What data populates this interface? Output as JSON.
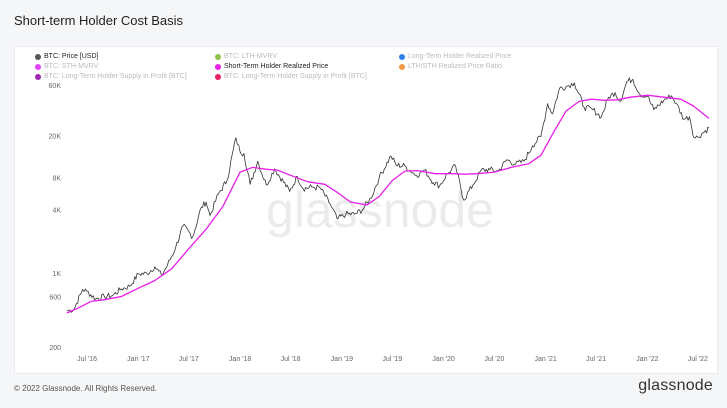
{
  "title": "Short-term Holder Cost Basis",
  "footer": "© 2022 Glassnode. All Rights Reserved.",
  "brand": "glassnode",
  "watermark": "glassnode",
  "legend": [
    {
      "label": "BTC: Price [USD]",
      "color": "#555555",
      "muted": false
    },
    {
      "label": "BTC: LTH-MVRV",
      "color": "#8bc34a",
      "muted": true
    },
    {
      "label": "Long-Term Holder Realized Price",
      "color": "#2f80ed",
      "muted": true
    },
    {
      "label": "BTC: STH-MVRV",
      "color": "#e040fb",
      "muted": true
    },
    {
      "label": "Short-Term Holder Realized Price",
      "color": "#e91ee9",
      "muted": false
    },
    {
      "label": "LTH/STH Realized Price Ratio",
      "color": "#f2994a",
      "muted": true
    },
    {
      "label": "BTC: Long-Term Holder Supply in Profit [BTC]",
      "color": "#9c27b0",
      "muted": true
    },
    {
      "label": "BTC: Long-Term Holder Supply in Profit [BTC]",
      "color": "#e91e63",
      "muted": true
    }
  ],
  "chart_data": {
    "type": "line",
    "title": "Short-term Holder Cost Basis",
    "y_scale": "log",
    "ylim": [
      200,
      60000
    ],
    "y_ticks": [
      {
        "value": 200,
        "label": "200"
      },
      {
        "value": 600,
        "label": "600"
      },
      {
        "value": 1000,
        "label": "1K"
      },
      {
        "value": 4000,
        "label": "4K"
      },
      {
        "value": 8000,
        "label": "8K"
      },
      {
        "value": 20000,
        "label": "20K"
      },
      {
        "value": 60000,
        "label": "60K"
      }
    ],
    "x_range": [
      "2016-04-20",
      "2022-08-10"
    ],
    "x_ticks": [
      {
        "date": "2016-07-01",
        "label": "Jul '16"
      },
      {
        "date": "2017-01-01",
        "label": "Jan '17"
      },
      {
        "date": "2017-07-01",
        "label": "Jul '17"
      },
      {
        "date": "2018-01-01",
        "label": "Jan '18"
      },
      {
        "date": "2018-07-01",
        "label": "Jul '18"
      },
      {
        "date": "2019-01-01",
        "label": "Jan '19"
      },
      {
        "date": "2019-07-01",
        "label": "Jul '19"
      },
      {
        "date": "2020-01-01",
        "label": "Jan '20"
      },
      {
        "date": "2020-07-01",
        "label": "Jul '20"
      },
      {
        "date": "2021-01-01",
        "label": "Jan '21"
      },
      {
        "date": "2021-07-01",
        "label": "Jul '21"
      },
      {
        "date": "2022-01-01",
        "label": "Jan '22"
      },
      {
        "date": "2022-07-01",
        "label": "Jul '22"
      }
    ],
    "series": [
      {
        "name": "BTC: Price [USD]",
        "color": "#333333",
        "points": [
          [
            "2016-04-20",
            440
          ],
          [
            "2016-05-15",
            455
          ],
          [
            "2016-06-15",
            700
          ],
          [
            "2016-07-01",
            670
          ],
          [
            "2016-08-01",
            570
          ],
          [
            "2016-09-01",
            600
          ],
          [
            "2016-10-01",
            615
          ],
          [
            "2016-11-01",
            710
          ],
          [
            "2016-12-01",
            750
          ],
          [
            "2017-01-01",
            980
          ],
          [
            "2017-02-01",
            990
          ],
          [
            "2017-03-01",
            1150
          ],
          [
            "2017-03-25",
            950
          ],
          [
            "2017-04-15",
            1180
          ],
          [
            "2017-05-15",
            1750
          ],
          [
            "2017-06-10",
            2800
          ],
          [
            "2017-07-15",
            2200
          ],
          [
            "2017-08-15",
            4200
          ],
          [
            "2017-09-01",
            4700
          ],
          [
            "2017-09-15",
            3500
          ],
          [
            "2017-10-15",
            5600
          ],
          [
            "2017-11-15",
            7500
          ],
          [
            "2017-12-17",
            19000
          ],
          [
            "2018-01-01",
            14000
          ],
          [
            "2018-01-15",
            13500
          ],
          [
            "2018-02-06",
            6900
          ],
          [
            "2018-03-05",
            11400
          ],
          [
            "2018-04-05",
            6800
          ],
          [
            "2018-05-05",
            9700
          ],
          [
            "2018-06-28",
            5900
          ],
          [
            "2018-07-25",
            8200
          ],
          [
            "2018-08-15",
            6300
          ],
          [
            "2018-09-15",
            6500
          ],
          [
            "2018-10-15",
            6400
          ],
          [
            "2018-11-20",
            4500
          ],
          [
            "2018-12-15",
            3250
          ],
          [
            "2019-01-15",
            3600
          ],
          [
            "2019-02-15",
            3600
          ],
          [
            "2019-03-15",
            3950
          ],
          [
            "2019-04-15",
            5100
          ],
          [
            "2019-05-15",
            8000
          ],
          [
            "2019-06-26",
            12800
          ],
          [
            "2019-07-15",
            10500
          ],
          [
            "2019-08-15",
            10300
          ],
          [
            "2019-09-25",
            8400
          ],
          [
            "2019-10-25",
            9400
          ],
          [
            "2019-11-25",
            7200
          ],
          [
            "2019-12-18",
            6700
          ],
          [
            "2020-01-15",
            8700
          ],
          [
            "2020-02-13",
            10300
          ],
          [
            "2020-03-13",
            4900
          ],
          [
            "2020-04-15",
            6800
          ],
          [
            "2020-05-15",
            9400
          ],
          [
            "2020-06-15",
            9500
          ],
          [
            "2020-07-15",
            9200
          ],
          [
            "2020-08-15",
            11800
          ],
          [
            "2020-09-15",
            10700
          ],
          [
            "2020-10-15",
            11400
          ],
          [
            "2020-11-15",
            16000
          ],
          [
            "2020-12-15",
            19500
          ],
          [
            "2021-01-08",
            40000
          ],
          [
            "2021-01-25",
            32000
          ],
          [
            "2021-02-20",
            56000
          ],
          [
            "2021-03-15",
            58000
          ],
          [
            "2021-04-14",
            63000
          ],
          [
            "2021-05-19",
            37000
          ],
          [
            "2021-06-20",
            35000
          ],
          [
            "2021-07-20",
            30000
          ],
          [
            "2021-08-15",
            46000
          ],
          [
            "2021-09-07",
            51000
          ],
          [
            "2021-09-25",
            42000
          ],
          [
            "2021-10-20",
            65000
          ],
          [
            "2021-11-10",
            68000
          ],
          [
            "2021-12-05",
            49000
          ],
          [
            "2022-01-01",
            47000
          ],
          [
            "2022-01-24",
            35000
          ],
          [
            "2022-03-01",
            43000
          ],
          [
            "2022-03-28",
            47500
          ],
          [
            "2022-04-15",
            40000
          ],
          [
            "2022-05-12",
            28500
          ],
          [
            "2022-06-01",
            30000
          ],
          [
            "2022-06-18",
            19000
          ],
          [
            "2022-07-01",
            19300
          ],
          [
            "2022-07-15",
            20800
          ],
          [
            "2022-08-10",
            23500
          ]
        ]
      },
      {
        "name": "Short-Term Holder Realized Price",
        "color": "#e91ee9",
        "points": [
          [
            "2016-04-20",
            420
          ],
          [
            "2016-06-01",
            470
          ],
          [
            "2016-07-15",
            540
          ],
          [
            "2016-09-01",
            560
          ],
          [
            "2016-11-01",
            600
          ],
          [
            "2017-01-01",
            720
          ],
          [
            "2017-03-01",
            850
          ],
          [
            "2017-05-01",
            1100
          ],
          [
            "2017-07-01",
            1700
          ],
          [
            "2017-09-01",
            2600
          ],
          [
            "2017-11-01",
            4300
          ],
          [
            "2018-01-01",
            9000
          ],
          [
            "2018-02-15",
            10000
          ],
          [
            "2018-04-01",
            9600
          ],
          [
            "2018-05-15",
            9400
          ],
          [
            "2018-07-01",
            8400
          ],
          [
            "2018-09-01",
            7300
          ],
          [
            "2018-11-01",
            6900
          ],
          [
            "2018-12-15",
            5800
          ],
          [
            "2019-02-01",
            4700
          ],
          [
            "2019-04-01",
            4400
          ],
          [
            "2019-05-15",
            5300
          ],
          [
            "2019-07-01",
            7500
          ],
          [
            "2019-08-15",
            9200
          ],
          [
            "2019-10-01",
            9300
          ],
          [
            "2019-12-01",
            8700
          ],
          [
            "2020-02-01",
            8700
          ],
          [
            "2020-03-15",
            8600
          ],
          [
            "2020-05-01",
            8700
          ],
          [
            "2020-07-01",
            9000
          ],
          [
            "2020-09-01",
            10000
          ],
          [
            "2020-11-01",
            10800
          ],
          [
            "2020-12-15",
            13000
          ],
          [
            "2021-02-01",
            22000
          ],
          [
            "2021-03-15",
            34000
          ],
          [
            "2021-05-01",
            42000
          ],
          [
            "2021-06-15",
            44000
          ],
          [
            "2021-08-01",
            43000
          ],
          [
            "2021-09-15",
            43500
          ],
          [
            "2021-11-01",
            46000
          ],
          [
            "2022-01-01",
            48000
          ],
          [
            "2022-03-01",
            46000
          ],
          [
            "2022-05-01",
            44000
          ],
          [
            "2022-06-15",
            38000
          ],
          [
            "2022-08-10",
            29000
          ]
        ]
      }
    ]
  }
}
